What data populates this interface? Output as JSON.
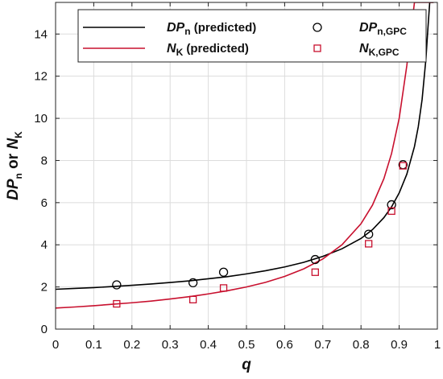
{
  "chart_data": {
    "type": "line",
    "xlabel": "q",
    "ylabel": {
      "p1": "DP",
      "s1": "n",
      "mid": " or ",
      "p2": "N",
      "s2": "K"
    },
    "xlim": [
      0,
      1
    ],
    "ylim": [
      0,
      15.5
    ],
    "xticks": [
      "0",
      "0.1",
      "0.2",
      "0.3",
      "0.4",
      "0.5",
      "0.6",
      "0.7",
      "0.8",
      "0.9",
      "1"
    ],
    "yticks": [
      "0",
      "2",
      "4",
      "6",
      "8",
      "10",
      "12",
      "14"
    ],
    "grid": true,
    "legend_position": "top",
    "series": [
      {
        "id": "dpn_pred",
        "kind": "line",
        "name": {
          "main": "DP",
          "sub": "n",
          "suffix": " (predicted)"
        },
        "color": "#000000",
        "x": [
          0,
          0.05,
          0.1,
          0.15,
          0.2,
          0.25,
          0.3,
          0.35,
          0.4,
          0.45,
          0.5,
          0.55,
          0.6,
          0.65,
          0.7,
          0.75,
          0.8,
          0.83,
          0.86,
          0.88,
          0.9,
          0.92,
          0.94,
          0.95,
          0.96,
          0.97,
          0.975,
          0.98,
          0.985,
          0.99
        ],
        "y": [
          1.89,
          1.93,
          1.97,
          2.02,
          2.08,
          2.14,
          2.21,
          2.29,
          2.39,
          2.49,
          2.62,
          2.77,
          2.95,
          3.17,
          3.45,
          3.81,
          4.3,
          4.72,
          5.29,
          5.8,
          6.46,
          7.35,
          8.66,
          9.6,
          10.89,
          12.81,
          14.2,
          15.5,
          15.5,
          15.5
        ]
      },
      {
        "id": "nk_pred",
        "kind": "line",
        "name": {
          "main": "N",
          "sub": "K",
          "suffix": " (predicted)"
        },
        "color": "#c8102e",
        "x": [
          0,
          0.05,
          0.1,
          0.15,
          0.2,
          0.25,
          0.3,
          0.35,
          0.4,
          0.45,
          0.5,
          0.55,
          0.6,
          0.65,
          0.7,
          0.75,
          0.8,
          0.83,
          0.86,
          0.88,
          0.9,
          0.92,
          0.94,
          0.95,
          0.96,
          0.97,
          0.975,
          0.98,
          0.985,
          0.99
        ],
        "y": [
          1.0,
          1.05,
          1.11,
          1.18,
          1.25,
          1.33,
          1.43,
          1.54,
          1.67,
          1.82,
          2.0,
          2.22,
          2.5,
          2.86,
          3.33,
          4.0,
          5.0,
          5.88,
          7.14,
          8.33,
          10.0,
          12.5,
          15.5,
          15.5,
          15.5,
          15.5,
          15.5,
          15.5,
          15.5,
          15.5
        ]
      },
      {
        "id": "dpn_gpc",
        "kind": "scatter",
        "marker": "circle",
        "name": {
          "main": "DP",
          "sub": "n,GPC",
          "suffix": ""
        },
        "color": "#000000",
        "x": [
          0.16,
          0.36,
          0.44,
          0.68,
          0.82,
          0.88,
          0.91
        ],
        "y": [
          2.1,
          2.2,
          2.7,
          3.3,
          4.5,
          5.9,
          7.8
        ]
      },
      {
        "id": "nk_gpc",
        "kind": "scatter",
        "marker": "square",
        "name": {
          "main": "N",
          "sub": "K,GPC",
          "suffix": ""
        },
        "color": "#c8102e",
        "x": [
          0.16,
          0.36,
          0.44,
          0.68,
          0.82,
          0.88,
          0.91
        ],
        "y": [
          1.2,
          1.4,
          1.95,
          2.7,
          4.05,
          5.6,
          7.75
        ]
      }
    ]
  }
}
